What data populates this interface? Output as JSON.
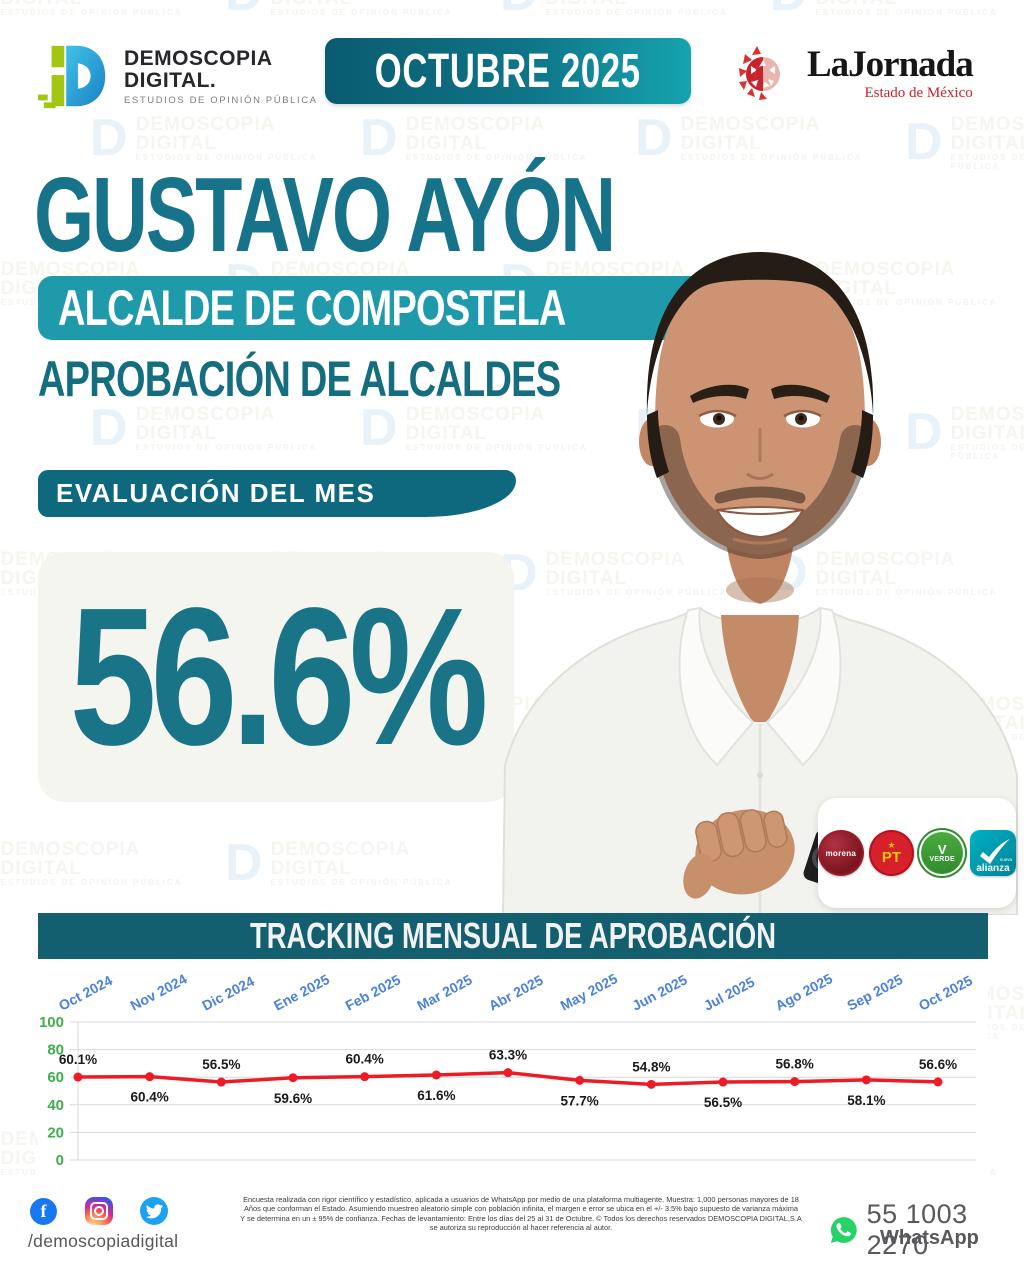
{
  "brand": {
    "line1": "DEMOSCOPIA",
    "line2": "DIGITAL.",
    "tagline": "ESTUDIOS DE OPINIÓN PÚBLICA"
  },
  "period_banner": "OCTUBRE 2025",
  "partner": {
    "name": "LaJornada",
    "region": "Estado de México"
  },
  "hero": {
    "title": "GUSTAVO AYÓN",
    "badge": "ALCALDE DE COMPOSTELA",
    "subtitle": "APROBACIÓN DE ALCALDES"
  },
  "evaluation": {
    "label": "EVALUACIÓN DEL MES",
    "score": "56.6%"
  },
  "parties": [
    {
      "name": "morena"
    },
    {
      "name": "PT"
    },
    {
      "name": "VERDE"
    },
    {
      "name": "nueva alianza",
      "word_small": "nueva",
      "word_big": "alianza"
    }
  ],
  "chart_data": {
    "type": "line",
    "title": "TRACKING MENSUAL DE APROBACIÓN",
    "categories": [
      "Oct 2024",
      "Nov 2024",
      "Dic 2024",
      "Ene 2025",
      "Feb 2025",
      "Mar 2025",
      "Abr 2025",
      "May 2025",
      "Jun 2025",
      "Jul 2025",
      "Ago 2025",
      "Sep 2025",
      "Oct 2025"
    ],
    "values": [
      60.1,
      60.4,
      56.5,
      59.6,
      60.4,
      61.6,
      63.3,
      57.7,
      54.8,
      56.5,
      56.8,
      58.1,
      56.6
    ],
    "value_labels": [
      "60.1%",
      "60.4%",
      "56.5%",
      "59.6%",
      "60.4%",
      "61.6%",
      "63.3%",
      "57.7%",
      "54.8%",
      "56.5%",
      "56.8%",
      "58.1%",
      "56.6%"
    ],
    "ylim": [
      0,
      100
    ],
    "yticks": [
      0,
      20,
      40,
      60,
      80,
      100
    ],
    "grid": true,
    "legend": "none",
    "line_color": "#ed1c24",
    "month_label_color": "#4a82dd",
    "ytick_color": "#3fae4c",
    "value_label_color": "#1a1a1a"
  },
  "footer": {
    "handle": "/demoscopiadigital",
    "disclaimer_lines": [
      "Encuesta realizada con rigor científico y estadístico, aplicada a usuarios de WhatsApp por medio de una plataforma multiagente. Muestra: 1,000 personas mayores de 18",
      "Años que conforman el Estado. Asumiendo muestreo aleatorio simple con población infinita, el margen e error se ubica en el +/- 3.5% bajo supuesto de varianza máxima",
      "Y se determina en un ± 95% de confianza. Fechas de levantamiento: Entre los días del 25 al 31 de Octubre. © Todos los derechos reservados DEMOSCOPIA DIGITAL,S.A",
      "se autoriza su reproducción al hacer referencia al autor."
    ],
    "whatsapp_number": "55 1003 2270",
    "whatsapp_label": "WhatsApp"
  },
  "colors": {
    "teal_title": "#17738a",
    "teal_badge": "#1f9aaa",
    "teal_banner_dark": "#135f70",
    "eval_banner": "#0e697e",
    "score": "#1a7487",
    "period_gradient_left": "#0a5b70",
    "period_gradient_right": "#16a3b0",
    "jornada_red": "#c8242e"
  }
}
